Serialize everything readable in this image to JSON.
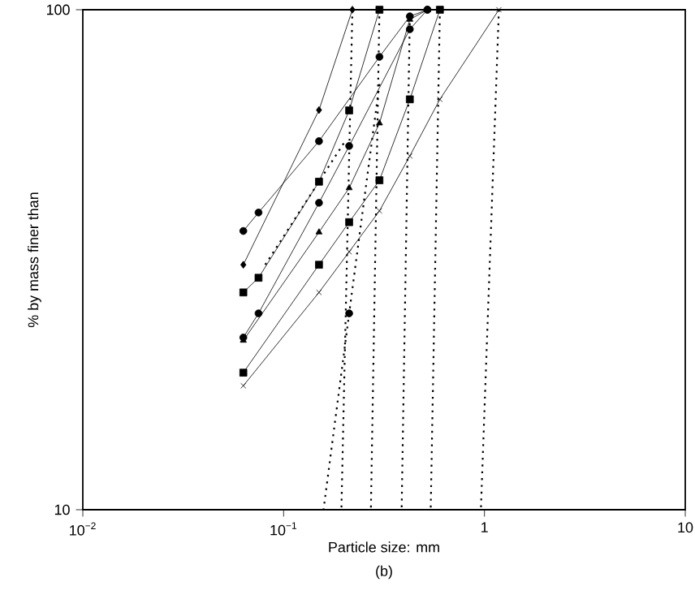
{
  "chart_data": {
    "type": "line",
    "xlabel": "Particle size: mm",
    "ylabel": "% by mass finer than",
    "annotations": [
      "(b)"
    ],
    "log": "xy",
    "xlim": [
      0.01,
      10
    ],
    "ylim": [
      10,
      100
    ],
    "xticks": [
      {
        "value": 0.01,
        "label": "10$^{−2}$"
      },
      {
        "value": 0.1,
        "label": "10$^{−1}$"
      },
      1,
      10
    ],
    "yticks": [
      10,
      100
    ],
    "grid": false,
    "series": [
      {
        "color": "#000000",
        "marker": "diamond",
        "line_style": "solid",
        "x": [
          0.063,
          0.15,
          0.22
        ],
        "values": [
          30.9,
          63,
          100
        ]
      },
      {
        "color": "#000000",
        "marker": "circle",
        "line_style": "solid",
        "x": [
          0.063,
          0.075,
          0.15,
          0.3,
          0.425,
          0.52
        ],
        "values": [
          36.1,
          39.3,
          54.6,
          80.5,
          97,
          100
        ]
      },
      {
        "color": "#000000",
        "marker": "square",
        "line_style": "solid",
        "x": [
          0.063,
          0.075,
          0.15,
          0.212,
          0.3
        ],
        "values": [
          27.2,
          29.1,
          45.3,
          62.9,
          100
        ]
      },
      {
        "color": "#000000",
        "marker": "circle",
        "line_style": "solid",
        "x": [
          0.063,
          0.075,
          0.15,
          0.212,
          0.425,
          0.52
        ],
        "values": [
          22.1,
          24.7,
          41.1,
          53.4,
          91.4,
          100
        ]
      },
      {
        "color": "#000000",
        "marker": "triangle",
        "line_style": "solid",
        "x": [
          0.063,
          0.15,
          0.212,
          0.3,
          0.425,
          0.52
        ],
        "values": [
          21.8,
          35.9,
          44,
          59.3,
          95.6,
          100
        ]
      },
      {
        "color": "#000000",
        "marker": "square",
        "line_style": "solid",
        "x": [
          0.063,
          0.15,
          0.212,
          0.3,
          0.425,
          0.6
        ],
        "values": [
          18.8,
          30.9,
          37.6,
          45.6,
          66.2,
          100
        ]
      },
      {
        "color": "#000000",
        "marker": "cross",
        "line_style": "solid",
        "x": [
          0.063,
          0.15,
          0.212,
          0.3,
          0.425,
          0.6,
          1.18
        ],
        "values": [
          17.7,
          27.2,
          32.8,
          39.6,
          51,
          66.2,
          100
        ]
      },
      {
        "type": "scatter",
        "color": "#000000",
        "marker": "circle",
        "x": [
          0.212
        ],
        "values": [
          24.7
        ]
      },
      {
        "color": "#000000",
        "marker": "none",
        "line_style": "dotted",
        "x": [
          0.22,
          0.194
        ],
        "values": [
          100,
          10
        ]
      },
      {
        "color": "#000000",
        "marker": "none",
        "line_style": "dotted",
        "x": [
          0.3,
          0.212,
          0.158
        ],
        "values": [
          71,
          24.7,
          10
        ]
      },
      {
        "color": "#000000",
        "marker": "none",
        "line_style": "dotted",
        "x": [
          0.3,
          0.272
        ],
        "values": [
          100,
          10
        ]
      },
      {
        "color": "#000000",
        "marker": "none",
        "line_style": "dotted",
        "x": [
          0.425,
          0.387
        ],
        "values": [
          97,
          10
        ]
      },
      {
        "color": "#000000",
        "marker": "none",
        "line_style": "dotted",
        "x": [
          0.6,
          0.54
        ],
        "values": [
          100,
          10
        ]
      },
      {
        "color": "#000000",
        "marker": "none",
        "line_style": "dotted",
        "x": [
          1.18,
          0.96
        ],
        "values": [
          100,
          10
        ]
      },
      {
        "color": "#000000",
        "marker": "none",
        "line_style": "dotted",
        "x": [
          0.081,
          0.2
        ],
        "values": [
          30.9,
          54.2
        ]
      }
    ]
  }
}
